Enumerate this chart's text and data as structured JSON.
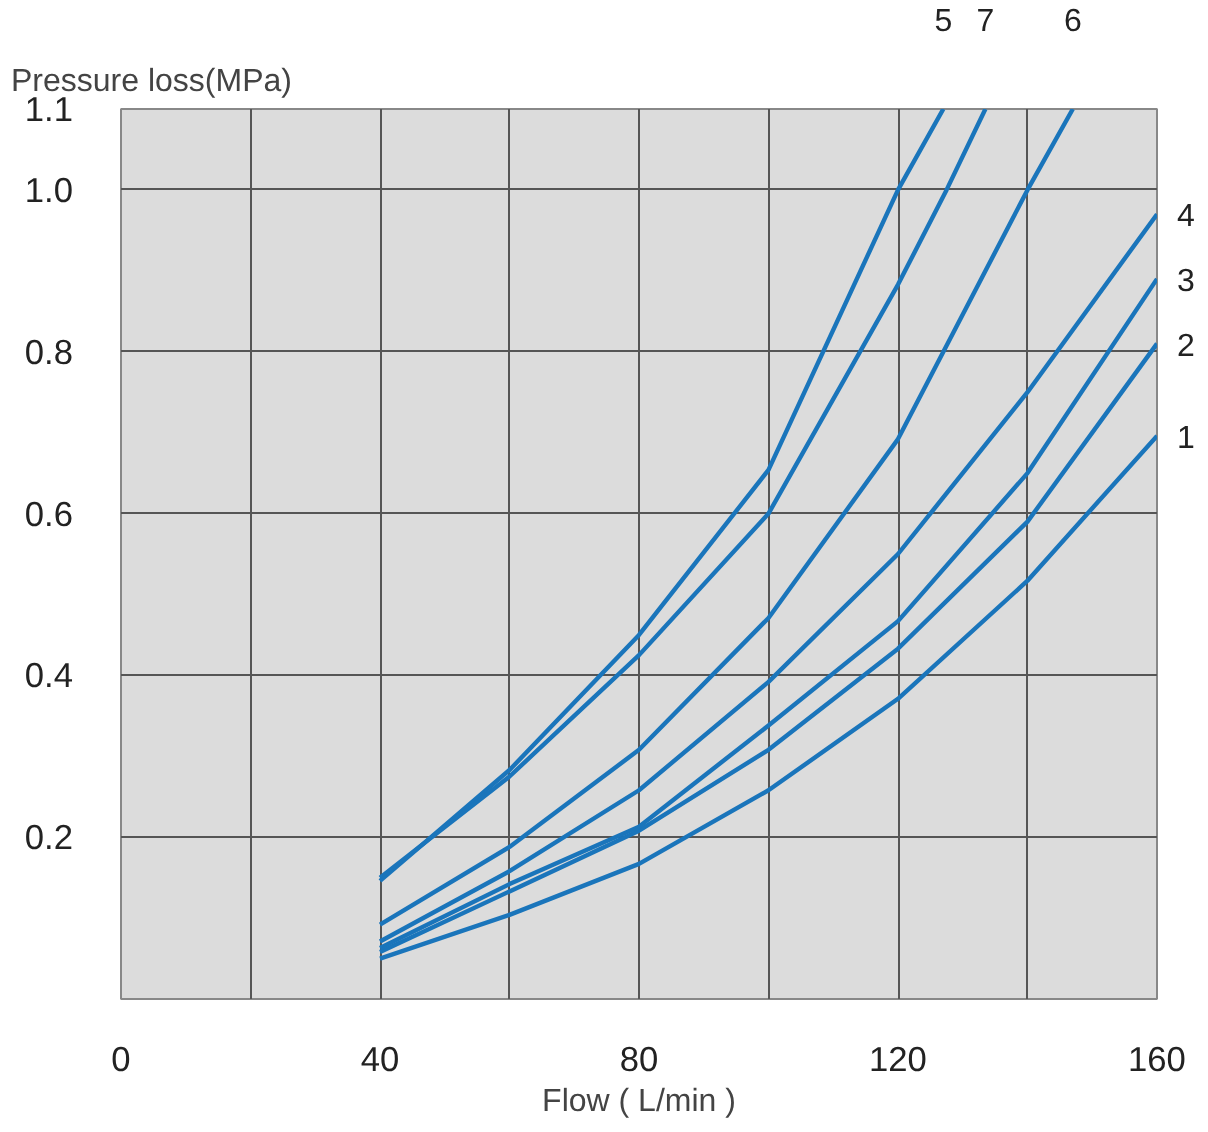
{
  "chart_data": {
    "type": "line",
    "ylabel": "Pressure loss(MPa)",
    "xlabel": "Flow ( L/min )",
    "xlim": [
      0,
      160
    ],
    "ylim": [
      0,
      1.1
    ],
    "xticks": [
      0,
      {
        "value": 20,
        "label": null
      },
      40,
      {
        "value": 60,
        "label": null
      },
      80,
      {
        "value": 100,
        "label": null
      },
      120,
      {
        "value": 140,
        "label": null
      },
      160
    ],
    "yticks": [
      0.2,
      0.4,
      0.6,
      0.8,
      {
        "value": 1.0,
        "label": "1.0"
      },
      1.1
    ],
    "grid": true,
    "marker": "none",
    "line_style": "solid",
    "series": [
      {
        "name": "1",
        "color": "#1a75bb",
        "x": [
          40,
          60,
          80,
          100,
          120,
          140,
          160
        ],
        "values": [
          0.05,
          0.104,
          0.167,
          0.258,
          0.371,
          0.517,
          0.696
        ]
      },
      {
        "name": "2",
        "color": "#1a75bb",
        "x": [
          40,
          60,
          80,
          100,
          120,
          140,
          160
        ],
        "values": [
          0.058,
          0.133,
          0.208,
          0.308,
          0.433,
          0.59,
          0.81
        ]
      },
      {
        "name": "3",
        "color": "#1a75bb",
        "x": [
          40,
          60,
          80,
          100,
          120,
          140,
          160
        ],
        "values": [
          0.063,
          0.142,
          0.213,
          0.338,
          0.467,
          0.65,
          0.89
        ]
      },
      {
        "name": "4",
        "color": "#1a75bb",
        "x": [
          40,
          60,
          80,
          100,
          120,
          140,
          160
        ],
        "values": [
          0.071,
          0.158,
          0.258,
          0.392,
          0.55,
          0.75,
          0.97
        ]
      },
      {
        "name": "5",
        "color": "#1a75bb",
        "x": [
          40,
          60,
          80,
          100,
          120,
          127
        ],
        "values": [
          0.146,
          0.283,
          0.45,
          0.654,
          1.0,
          1.1
        ]
      },
      {
        "name": "6",
        "color": "#1a75bb",
        "x": [
          40,
          60,
          80,
          100,
          120,
          140,
          147
        ],
        "values": [
          0.092,
          0.188,
          0.308,
          0.471,
          0.692,
          1.0,
          1.1
        ]
      },
      {
        "name": "7",
        "color": "#1a75bb",
        "x": [
          40,
          60,
          80,
          100,
          120,
          127.5,
          133.5
        ],
        "values": [
          0.15,
          0.275,
          0.425,
          0.6,
          0.883,
          1.0,
          1.1
        ]
      }
    ]
  }
}
